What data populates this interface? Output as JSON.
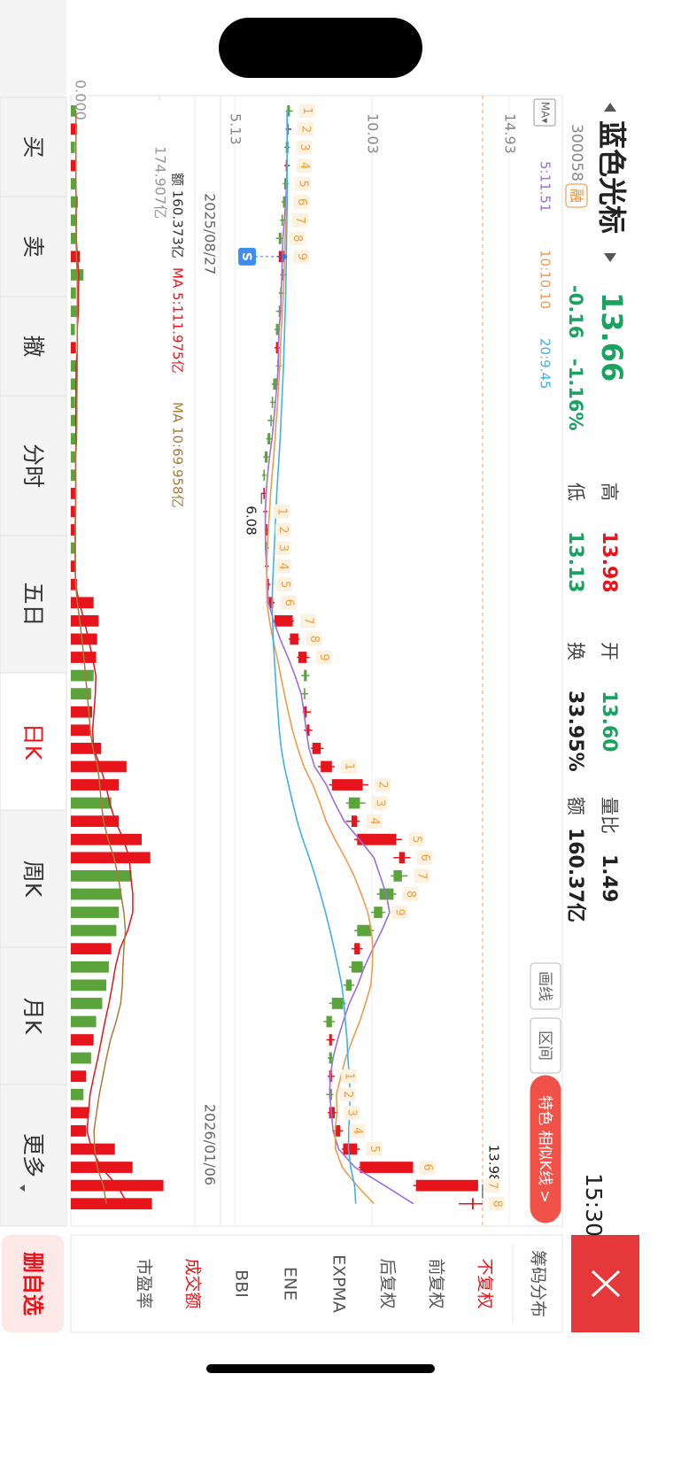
{
  "header": {
    "name": "蓝色光标",
    "code": "300058",
    "badge": "融",
    "price": "13.66",
    "change": "-0.16",
    "change_pct": "-1.16%",
    "time": "15:30",
    "stats": [
      {
        "label": "高",
        "value": "13.98"
      },
      {
        "label": "低",
        "value": "13.13"
      },
      {
        "label": "开",
        "value": "13.60"
      },
      {
        "label": "换",
        "value": "33.95%"
      },
      {
        "label": "量比",
        "value": "1.49"
      },
      {
        "label": "额",
        "value": "160.37亿"
      }
    ]
  },
  "chart_buttons": [
    "画线",
    "区间",
    "特色 相似K线 >"
  ],
  "chart_data": [
    {
      "type": "candlestick",
      "ma_selector": "MA▾",
      "ylim": [
        4.62,
        15.88
      ],
      "yticks": [
        14.93,
        10.03,
        5.13
      ],
      "grid": true,
      "up_color": "#e8141b",
      "down_color": "#5ba33b",
      "categories": [
        null,
        null,
        null,
        null,
        null,
        "2025/08/27",
        null,
        null,
        null,
        null,
        null,
        null,
        null,
        null,
        null,
        null,
        null,
        null,
        null,
        null,
        null,
        null,
        null,
        null,
        null,
        null,
        null,
        null,
        null,
        null,
        null,
        null,
        null,
        null,
        null,
        null,
        null,
        null,
        null,
        null,
        null,
        null,
        null,
        null,
        null,
        null,
        null,
        null,
        null,
        null,
        null,
        null,
        null,
        null,
        null,
        "2026/01/06",
        null,
        null,
        null,
        null,
        null
      ],
      "ohlc": [
        [
          7.1,
          7.2,
          6.95,
          7.0
        ],
        [
          7.0,
          7.15,
          6.95,
          7.05
        ],
        [
          7.05,
          7.1,
          6.9,
          6.95
        ],
        [
          6.95,
          7.1,
          6.9,
          7.0
        ],
        [
          7.0,
          7.05,
          6.85,
          6.9
        ],
        [
          6.95,
          7.0,
          6.8,
          6.85
        ],
        [
          6.85,
          6.95,
          6.75,
          6.8
        ],
        [
          6.8,
          6.85,
          6.6,
          6.7
        ],
        [
          6.7,
          7.0,
          6.65,
          6.9
        ],
        [
          6.9,
          6.95,
          6.75,
          6.8
        ],
        [
          6.8,
          6.9,
          6.7,
          6.75
        ],
        [
          6.75,
          6.8,
          6.6,
          6.7
        ],
        [
          6.7,
          6.75,
          6.55,
          6.6
        ],
        [
          6.6,
          6.75,
          6.55,
          6.7
        ],
        [
          6.7,
          6.8,
          6.6,
          6.65
        ],
        [
          6.65,
          6.7,
          6.45,
          6.5
        ],
        [
          6.5,
          6.6,
          6.4,
          6.45
        ],
        [
          6.45,
          6.5,
          6.3,
          6.4
        ],
        [
          6.4,
          6.45,
          6.25,
          6.3
        ],
        [
          6.3,
          6.35,
          6.15,
          6.2
        ],
        [
          6.2,
          6.25,
          6.1,
          6.15
        ],
        [
          6.15,
          6.25,
          6.08,
          6.2
        ],
        [
          6.2,
          6.3,
          6.15,
          6.25
        ],
        [
          6.25,
          6.35,
          6.2,
          6.3
        ],
        [
          6.3,
          6.35,
          6.2,
          6.25
        ],
        [
          6.25,
          6.35,
          6.2,
          6.3
        ],
        [
          6.3,
          6.4,
          6.25,
          6.35
        ],
        [
          6.35,
          6.55,
          6.3,
          6.5
        ],
        [
          6.55,
          7.25,
          6.5,
          7.2
        ],
        [
          7.1,
          7.45,
          7.05,
          7.4
        ],
        [
          7.4,
          7.8,
          7.35,
          7.7
        ],
        [
          7.7,
          7.8,
          7.5,
          7.6
        ],
        [
          7.65,
          7.75,
          7.5,
          7.6
        ],
        [
          7.6,
          7.85,
          7.55,
          7.7
        ],
        [
          7.7,
          7.9,
          7.6,
          7.8
        ],
        [
          7.9,
          8.3,
          7.85,
          8.2
        ],
        [
          8.2,
          8.7,
          8.1,
          8.6
        ],
        [
          8.6,
          9.9,
          8.5,
          9.7
        ],
        [
          9.6,
          9.8,
          9.1,
          9.2
        ],
        [
          9.3,
          9.6,
          9.1,
          9.5
        ],
        [
          9.5,
          11.1,
          9.4,
          10.9
        ],
        [
          11.0,
          11.4,
          10.8,
          11.2
        ],
        [
          11.1,
          11.3,
          10.7,
          10.8
        ],
        [
          10.8,
          10.9,
          10.2,
          10.3
        ],
        [
          10.4,
          10.5,
          10.0,
          10.1
        ],
        [
          10.0,
          10.1,
          9.4,
          9.5
        ],
        [
          9.4,
          9.7,
          9.3,
          9.6
        ],
        [
          9.7,
          9.8,
          9.2,
          9.3
        ],
        [
          9.3,
          9.4,
          9.0,
          9.1
        ],
        [
          9.0,
          9.1,
          8.5,
          8.6
        ],
        [
          8.6,
          8.7,
          8.3,
          8.4
        ],
        [
          8.5,
          8.7,
          8.4,
          8.6
        ],
        [
          8.6,
          8.65,
          8.45,
          8.5
        ],
        [
          8.5,
          8.7,
          8.45,
          8.6
        ],
        [
          8.6,
          8.65,
          8.4,
          8.5
        ],
        [
          8.5,
          8.8,
          8.45,
          8.7
        ],
        [
          8.7,
          9.0,
          8.65,
          8.9
        ],
        [
          9.0,
          9.6,
          8.95,
          9.5
        ],
        [
          9.6,
          11.5,
          9.55,
          11.5
        ],
        [
          11.6,
          13.82,
          11.5,
          13.82
        ],
        [
          13.6,
          13.98,
          13.13,
          13.66
        ]
      ],
      "series": [
        {
          "name": "5:11.51",
          "color": "#9b6fe0",
          "values": [
            7.0,
            7.0,
            7.0,
            7.0,
            6.98,
            6.95,
            6.9,
            6.85,
            6.83,
            6.81,
            6.79,
            6.77,
            6.71,
            6.69,
            6.68,
            6.64,
            6.58,
            6.52,
            6.46,
            6.37,
            6.3,
            6.25,
            6.22,
            6.22,
            6.23,
            6.26,
            6.29,
            6.33,
            6.52,
            6.75,
            7.03,
            7.28,
            7.5,
            7.6,
            7.68,
            7.78,
            7.98,
            8.4,
            8.7,
            9.04,
            9.58,
            10.1,
            10.32,
            10.54,
            10.66,
            10.38,
            10.06,
            9.76,
            9.52,
            9.22,
            9.0,
            8.8,
            8.64,
            8.54,
            8.52,
            8.58,
            8.64,
            8.84,
            9.42,
            10.48,
            11.51
          ]
        },
        {
          "name": "10:10.10",
          "color": "#f39a4c",
          "values": [
            7.0,
            7.0,
            7.0,
            7.0,
            7.0,
            6.98,
            6.96,
            6.93,
            6.91,
            6.89,
            6.87,
            6.83,
            6.79,
            6.76,
            6.74,
            6.7,
            6.66,
            6.61,
            6.57,
            6.52,
            6.46,
            6.41,
            6.37,
            6.33,
            6.29,
            6.27,
            6.27,
            6.28,
            6.37,
            6.49,
            6.64,
            6.77,
            6.9,
            7.04,
            7.19,
            7.38,
            7.6,
            7.92,
            8.17,
            8.39,
            8.71,
            9.07,
            9.39,
            9.65,
            9.88,
            10.01,
            10.06,
            10.04,
            9.99,
            9.8,
            9.59,
            9.33,
            9.09,
            8.92,
            8.76,
            8.78,
            8.71,
            8.73,
            8.97,
            9.49,
            10.1
          ]
        },
        {
          "name": "20:9.45",
          "color": "#3fb1ef",
          "values": [
            7.0,
            7.0,
            7.0,
            7.0,
            7.0,
            7.0,
            6.99,
            6.98,
            6.97,
            6.96,
            6.95,
            6.93,
            6.91,
            6.89,
            6.87,
            6.84,
            6.81,
            6.78,
            6.75,
            6.71,
            6.67,
            6.63,
            6.6,
            6.57,
            6.54,
            6.51,
            6.48,
            6.46,
            6.48,
            6.5,
            6.54,
            6.58,
            6.62,
            6.67,
            6.72,
            6.79,
            6.9,
            7.05,
            7.2,
            7.36,
            7.56,
            7.79,
            8.0,
            8.19,
            8.37,
            8.53,
            8.68,
            8.82,
            8.95,
            9.03,
            9.08,
            9.14,
            9.17,
            9.22,
            9.25,
            9.23,
            9.2,
            9.19,
            9.27,
            9.41,
            9.45
          ]
        }
      ],
      "high_mark": {
        "value": 13.98,
        "label": "13.98"
      },
      "low_mark": {
        "value": 6.08,
        "label": "6.08"
      },
      "signal": "S",
      "patterns": [
        [
          "1",
          "2",
          "3",
          "4",
          "5",
          "6",
          "7",
          "8",
          "9"
        ],
        [
          "1",
          "2",
          "3",
          "4",
          "5",
          "6",
          "7",
          "8",
          "9"
        ],
        [
          "1",
          "2",
          "3",
          "4",
          "5",
          "6",
          "7",
          "8",
          "9"
        ],
        [
          "1",
          "2",
          "3",
          "4",
          "5",
          "6",
          "7",
          "8"
        ]
      ]
    },
    {
      "type": "bar",
      "title": "额 160.373亿",
      "ylim": [
        0,
        245
      ],
      "yticks": [
        {
          "value": 174.907,
          "label": "174.907亿"
        },
        {
          "value": 0,
          "label": "0.000"
        }
      ],
      "values": [
        10,
        12,
        8,
        10,
        9,
        14,
        12,
        10,
        18,
        25,
        10,
        12,
        8,
        10,
        12,
        9,
        8,
        10,
        12,
        8,
        10,
        9,
        8,
        7,
        9,
        10,
        12,
        45,
        55,
        52,
        50,
        45,
        40,
        42,
        38,
        60,
        110,
        95,
        80,
        95,
        140,
        157,
        120,
        100,
        95,
        90,
        80,
        75,
        70,
        62,
        50,
        45,
        40,
        30,
        25,
        35,
        30,
        87,
        122,
        183,
        160.373
      ],
      "series": [
        {
          "name": "MA 5:111.975亿",
          "color": "#e8141b",
          "values": [
            10,
            10,
            10,
            10,
            10,
            10.6,
            10.6,
            10.8,
            12.8,
            15.8,
            15,
            15,
            12.6,
            13,
            10.4,
            10.2,
            9.8,
            9.8,
            10.2,
            9.4,
            9.6,
            9.8,
            9.4,
            8.4,
            8.6,
            8.6,
            9.2,
            16.6,
            26.6,
            34.8,
            42.8,
            49.4,
            48.4,
            45.8,
            43,
            45,
            58,
            69,
            76.6,
            88,
            104,
            115.4,
            118.4,
            122.4,
            122.4,
            112.4,
            97,
            88,
            82,
            75.4,
            67.4,
            60.4,
            53.4,
            45.4,
            38,
            35,
            32,
            41.4,
            59.8,
            91.4,
            111.975
          ]
        },
        {
          "name": "MA 10:69.958亿",
          "color": "#a87a3c",
          "values": [
            10,
            10,
            10,
            10,
            10,
            10,
            10,
            10.5,
            11,
            12.8,
            12.8,
            12.8,
            12.8,
            12.8,
            12.8,
            12.3,
            11.9,
            11.9,
            11.3,
            9.7,
            9.7,
            9.5,
            9.5,
            9.2,
            8.9,
            9,
            9.4,
            12.9,
            17.6,
            21.9,
            25.7,
            29.1,
            32.2,
            35.6,
            38.5,
            43.6,
            53.1,
            57.1,
            60.1,
            64.6,
            73.6,
            85.3,
            93.3,
            99.1,
            104.8,
            107.8,
            104.8,
            102.8,
            101.8,
            98.5,
            89.5,
            78.3,
            70.3,
            63.3,
            56.3,
            50.8,
            45.8,
            47.0,
            52.2,
            64.3,
            69.958
          ]
        }
      ]
    }
  ],
  "indicator_menu": [
    "筹码分布",
    "不复权",
    "前复权",
    "后复权",
    "EXPMA",
    "ENE",
    "BBI",
    "成交额",
    "市盈率"
  ],
  "nav": [
    "买",
    "卖",
    "撤",
    "分时",
    "五日",
    "日K",
    "周K",
    "月K",
    "更多"
  ],
  "remove_button": "删自选"
}
